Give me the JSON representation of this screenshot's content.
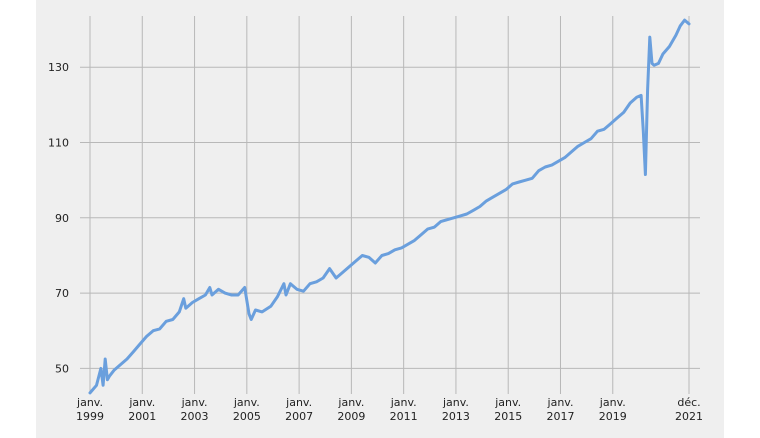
{
  "chart_data": {
    "type": "line",
    "title": "",
    "xlabel": "",
    "ylabel": "",
    "x_ticks": [
      {
        "month": "janv.",
        "year": "1999",
        "t": 1999.0
      },
      {
        "month": "janv.",
        "year": "2001",
        "t": 2001.0
      },
      {
        "month": "janv.",
        "year": "2003",
        "t": 2003.0
      },
      {
        "month": "janv.",
        "year": "2005",
        "t": 2005.0
      },
      {
        "month": "janv.",
        "year": "2007",
        "t": 2007.0
      },
      {
        "month": "janv.",
        "year": "2009",
        "t": 2009.0
      },
      {
        "month": "janv.",
        "year": "2011",
        "t": 2011.0
      },
      {
        "month": "janv.",
        "year": "2013",
        "t": 2013.0
      },
      {
        "month": "janv.",
        "year": "2015",
        "t": 2015.0
      },
      {
        "month": "janv.",
        "year": "2017",
        "t": 2017.0
      },
      {
        "month": "janv.",
        "year": "2019",
        "t": 2019.0
      },
      {
        "month": "déc.",
        "year": "2021",
        "t": 2021.9167
      }
    ],
    "y_ticks": [
      50,
      70,
      90,
      110,
      130
    ],
    "xlim": [
      "1999-01",
      "2021-12"
    ],
    "ylim": [
      43.2,
      143.6
    ],
    "grid": true,
    "series": [
      {
        "color": "#6a9fdd",
        "points": [
          [
            "1999-01",
            43.5
          ],
          [
            "1999-04",
            45.5
          ],
          [
            "1999-06",
            50
          ],
          [
            "1999-07",
            45.5
          ],
          [
            "1999-08",
            52.5
          ],
          [
            "1999-09",
            47
          ],
          [
            "1999-10",
            48
          ],
          [
            "1999-12",
            49.5
          ],
          [
            "2000-03",
            51
          ],
          [
            "2000-06",
            52.5
          ],
          [
            "2000-09",
            54.5
          ],
          [
            "2000-12",
            56.5
          ],
          [
            "2001-03",
            58.5
          ],
          [
            "2001-06",
            60
          ],
          [
            "2001-09",
            60.5
          ],
          [
            "2001-12",
            62.5
          ],
          [
            "2002-03",
            63
          ],
          [
            "2002-06",
            65
          ],
          [
            "2002-08",
            68.5
          ],
          [
            "2002-09",
            66
          ],
          [
            "2002-12",
            67.5
          ],
          [
            "2003-03",
            68.5
          ],
          [
            "2003-06",
            69.5
          ],
          [
            "2003-08",
            71.5
          ],
          [
            "2003-09",
            69.5
          ],
          [
            "2003-12",
            71
          ],
          [
            "2004-03",
            70
          ],
          [
            "2004-06",
            69.5
          ],
          [
            "2004-09",
            69.5
          ],
          [
            "2004-12",
            71.5
          ],
          [
            "2005-02",
            64.5
          ],
          [
            "2005-03",
            63
          ],
          [
            "2005-05",
            65.5
          ],
          [
            "2005-08",
            65
          ],
          [
            "2005-12",
            66.5
          ],
          [
            "2006-03",
            69
          ],
          [
            "2006-06",
            72.5
          ],
          [
            "2006-07",
            69.5
          ],
          [
            "2006-09",
            72.5
          ],
          [
            "2006-12",
            71
          ],
          [
            "2007-03",
            70.5
          ],
          [
            "2007-06",
            72.5
          ],
          [
            "2007-09",
            73
          ],
          [
            "2007-12",
            74
          ],
          [
            "2008-03",
            76.5
          ],
          [
            "2008-06",
            74
          ],
          [
            "2008-09",
            75.5
          ],
          [
            "2008-12",
            77
          ],
          [
            "2009-03",
            78.5
          ],
          [
            "2009-06",
            80
          ],
          [
            "2009-09",
            79.5
          ],
          [
            "2009-12",
            78
          ],
          [
            "2010-03",
            80
          ],
          [
            "2010-06",
            80.5
          ],
          [
            "2010-09",
            81.5
          ],
          [
            "2010-12",
            82
          ],
          [
            "2011-03",
            83
          ],
          [
            "2011-06",
            84
          ],
          [
            "2011-09",
            85.5
          ],
          [
            "2011-12",
            87
          ],
          [
            "2012-03",
            87.5
          ],
          [
            "2012-06",
            89
          ],
          [
            "2012-09",
            89.5
          ],
          [
            "2012-12",
            90
          ],
          [
            "2013-03",
            90.5
          ],
          [
            "2013-06",
            91
          ],
          [
            "2013-09",
            92
          ],
          [
            "2013-12",
            93
          ],
          [
            "2014-03",
            94.5
          ],
          [
            "2014-06",
            95.5
          ],
          [
            "2014-09",
            96.5
          ],
          [
            "2014-12",
            97.5
          ],
          [
            "2015-03",
            99
          ],
          [
            "2015-06",
            99.5
          ],
          [
            "2015-09",
            100
          ],
          [
            "2015-12",
            100.5
          ],
          [
            "2016-03",
            102.5
          ],
          [
            "2016-06",
            103.5
          ],
          [
            "2016-09",
            104
          ],
          [
            "2016-12",
            105
          ],
          [
            "2017-03",
            106
          ],
          [
            "2017-06",
            107.5
          ],
          [
            "2017-09",
            109
          ],
          [
            "2017-12",
            110
          ],
          [
            "2018-03",
            111
          ],
          [
            "2018-06",
            113
          ],
          [
            "2018-09",
            113.5
          ],
          [
            "2018-12",
            115
          ],
          [
            "2019-03",
            116.5
          ],
          [
            "2019-06",
            118
          ],
          [
            "2019-09",
            120.5
          ],
          [
            "2019-12",
            122
          ],
          [
            "2020-02",
            122.5
          ],
          [
            "2020-03",
            113
          ],
          [
            "2020-04",
            101.5
          ],
          [
            "2020-05",
            124
          ],
          [
            "2020-06",
            138
          ],
          [
            "2020-07",
            131
          ],
          [
            "2020-08",
            130.5
          ],
          [
            "2020-10",
            131
          ],
          [
            "2020-12",
            133.5
          ],
          [
            "2021-03",
            135.5
          ],
          [
            "2021-06",
            138.5
          ],
          [
            "2021-08",
            141
          ],
          [
            "2021-10",
            142.5
          ],
          [
            "2021-12",
            141.5
          ]
        ]
      }
    ]
  }
}
